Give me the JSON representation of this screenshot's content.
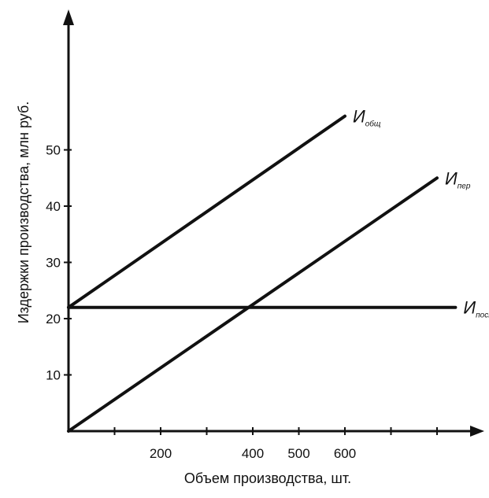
{
  "chart_data": {
    "type": "line",
    "title": "",
    "xlabel": "Объем производства, шт.",
    "ylabel": "Издержки производства, млн руб.",
    "xlim": [
      0,
      850
    ],
    "ylim": [
      0,
      70
    ],
    "x_ticks": [
      200,
      400,
      500,
      600
    ],
    "x_tick_labels": [
      "200",
      "400",
      "500",
      "600"
    ],
    "y_ticks": [
      10,
      20,
      30,
      40,
      50
    ],
    "y_tick_labels": [
      "10",
      "20",
      "30",
      "40",
      "50"
    ],
    "grid": false,
    "series": [
      {
        "name": "И",
        "subscript": "общ",
        "x": [
          0,
          600
        ],
        "y": [
          22,
          56
        ]
      },
      {
        "name": "И",
        "subscript": "пер",
        "x": [
          0,
          800
        ],
        "y": [
          0,
          45
        ]
      },
      {
        "name": "И",
        "subscript": "пост",
        "x": [
          0,
          840
        ],
        "y": [
          22,
          22
        ]
      }
    ],
    "line_color": "#111111"
  }
}
